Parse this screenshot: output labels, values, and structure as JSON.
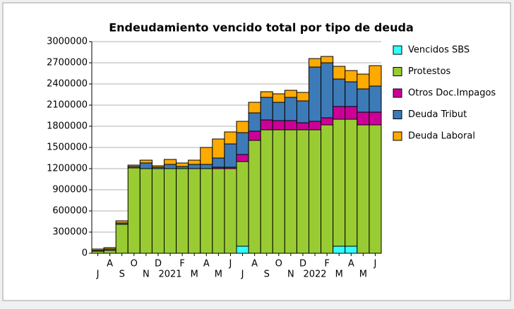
{
  "chart_data": {
    "type": "stacked_bar",
    "title": "Endeudamiento vencido total por tipo de deuda",
    "categories": [
      "J",
      "A",
      "S",
      "O",
      "N",
      "D",
      "2021",
      "F",
      "M",
      "A",
      "M",
      "J",
      "J",
      "A",
      "S",
      "O",
      "N",
      "D",
      "2022",
      "F",
      "M",
      "A",
      "M",
      "J"
    ],
    "series": [
      {
        "name": "Vencidos SBS",
        "color": "#33ffff",
        "values": [
          0,
          0,
          0,
          0,
          0,
          0,
          0,
          0,
          0,
          0,
          0,
          0,
          100000,
          0,
          0,
          0,
          0,
          0,
          0,
          0,
          100000,
          100000,
          0,
          0
        ]
      },
      {
        "name": "Protestos",
        "color": "#99cc33",
        "values": [
          30000,
          40000,
          410000,
          1210000,
          1200000,
          1200000,
          1200000,
          1200000,
          1200000,
          1200000,
          1200000,
          1200000,
          1200000,
          1600000,
          1750000,
          1750000,
          1750000,
          1750000,
          1750000,
          1820000,
          1800000,
          1800000,
          1820000,
          1820000
        ]
      },
      {
        "name": "Otros Doc.Impagos",
        "color": "#cc0099",
        "values": [
          0,
          0,
          0,
          0,
          0,
          0,
          0,
          0,
          0,
          0,
          20000,
          20000,
          100000,
          130000,
          140000,
          130000,
          130000,
          100000,
          120000,
          100000,
          180000,
          180000,
          180000,
          180000
        ]
      },
      {
        "name": "Deuda Tribut",
        "color": "#3d7ab8",
        "values": [
          10000,
          20000,
          20000,
          20000,
          80000,
          20000,
          60000,
          30000,
          60000,
          60000,
          130000,
          330000,
          310000,
          260000,
          320000,
          260000,
          330000,
          310000,
          770000,
          780000,
          390000,
          350000,
          330000,
          370000
        ]
      },
      {
        "name": "Deuda Laboral",
        "color": "#ffaa00",
        "values": [
          20000,
          20000,
          30000,
          20000,
          40000,
          20000,
          70000,
          50000,
          60000,
          240000,
          270000,
          170000,
          160000,
          150000,
          80000,
          120000,
          100000,
          120000,
          120000,
          90000,
          180000,
          160000,
          210000,
          290000
        ]
      }
    ],
    "ylim": [
      0,
      3000000
    ],
    "yticks": [
      0,
      300000,
      600000,
      900000,
      1200000,
      1500000,
      1800000,
      2100000,
      2400000,
      2700000,
      3000000
    ],
    "grid": true
  }
}
